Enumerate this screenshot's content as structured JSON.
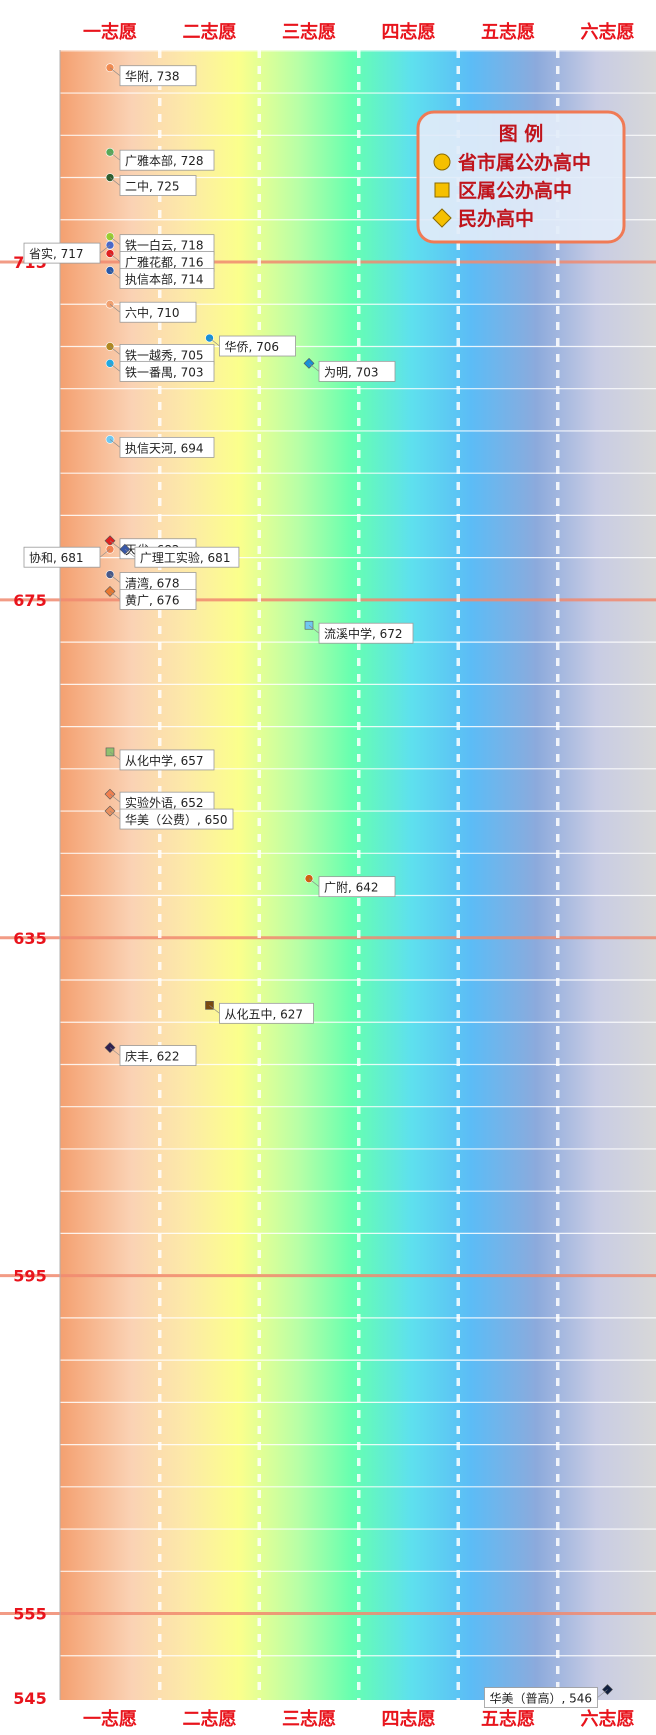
{
  "chart_data": {
    "type": "scatter",
    "categories": [
      "一志愿",
      "二志愿",
      "三志愿",
      "四志愿",
      "五志愿",
      "六志愿"
    ],
    "ylim": [
      545,
      744
    ],
    "y_ticks": [
      545,
      555,
      595,
      635,
      675,
      715
    ],
    "legend": {
      "title": "图 例",
      "placement": "top-right",
      "entries": [
        {
          "label": "省市属公办高中",
          "marker": "circle",
          "color": "#f5c000"
        },
        {
          "label": "区属公办高中",
          "marker": "square",
          "color": "#f5c000"
        },
        {
          "label": "民办高中",
          "marker": "diamond",
          "color": "#f5c000"
        }
      ]
    },
    "points": [
      {
        "name": "华附",
        "label": "华附, 738",
        "cat": 0,
        "y": 738,
        "marker": "circle",
        "color": "#f08a50",
        "side": "right"
      },
      {
        "name": "广雅本部",
        "label": "广雅本部, 728",
        "cat": 0,
        "y": 728,
        "marker": "circle",
        "color": "#58a858",
        "side": "right"
      },
      {
        "name": "二中",
        "label": "二中, 725",
        "cat": 0,
        "y": 725,
        "marker": "circle",
        "color": "#2e5e2e",
        "side": "right"
      },
      {
        "name": "铁一白云",
        "label": "铁一白云, 718",
        "cat": 0,
        "y": 718,
        "marker": "circle",
        "color": "#9acd32",
        "side": "right"
      },
      {
        "name": "省实",
        "label": "省实, 717",
        "cat": 0,
        "y": 717,
        "marker": "circle",
        "color": "#4a68c8",
        "side": "left"
      },
      {
        "name": "广雅花都",
        "label": "广雅花都, 716",
        "cat": 0,
        "y": 716,
        "marker": "circle",
        "color": "#e02020",
        "side": "right"
      },
      {
        "name": "执信本部",
        "label": "执信本部, 714",
        "cat": 0,
        "y": 714,
        "marker": "circle",
        "color": "#2858a8",
        "side": "right"
      },
      {
        "name": "六中",
        "label": "六中, 710",
        "cat": 0,
        "y": 710,
        "marker": "circle",
        "color": "#f0a070",
        "side": "right"
      },
      {
        "name": "华侨",
        "label": "华侨, 706",
        "cat": 1,
        "y": 706,
        "marker": "circle",
        "color": "#1890d8",
        "side": "right"
      },
      {
        "name": "铁一越秀",
        "label": "铁一越秀, 705",
        "cat": 0,
        "y": 705,
        "marker": "circle",
        "color": "#b08820",
        "side": "right"
      },
      {
        "name": "铁一番禺",
        "label": "铁一番禺, 703",
        "cat": 0,
        "y": 703,
        "marker": "circle",
        "color": "#20a8e0",
        "side": "right"
      },
      {
        "name": "为明",
        "label": "为明, 703",
        "cat": 2,
        "y": 703,
        "marker": "diamond",
        "color": "#1890d8",
        "side": "right"
      },
      {
        "name": "执信天河",
        "label": "执信天河, 694",
        "cat": 0,
        "y": 694,
        "marker": "circle",
        "color": "#70c8f0",
        "side": "right"
      },
      {
        "name": "天省",
        "label": "天省, 682",
        "cat": 0,
        "y": 682,
        "marker": "diamond",
        "color": "#e02020",
        "side": "right"
      },
      {
        "name": "协和",
        "label": "协和, 681",
        "cat": 0,
        "y": 681,
        "marker": "circle",
        "color": "#f08050",
        "side": "left"
      },
      {
        "name": "广理工实验",
        "label": "广理工实验, 681",
        "cat": 0.15,
        "y": 681,
        "marker": "diamond",
        "color": "#3858a8",
        "side": "right"
      },
      {
        "name": "清湾",
        "label": "清湾, 678",
        "cat": 0,
        "y": 678,
        "marker": "circle",
        "color": "#485888",
        "side": "right"
      },
      {
        "name": "黄广",
        "label": "黄广, 676",
        "cat": 0,
        "y": 676,
        "marker": "diamond",
        "color": "#e87830",
        "side": "right"
      },
      {
        "name": "流溪中学",
        "label": "流溪中学, 672",
        "cat": 2,
        "y": 672,
        "marker": "square",
        "color": "#70c8f0",
        "side": "right"
      },
      {
        "name": "从化中学",
        "label": "从化中学, 657",
        "cat": 0,
        "y": 657,
        "marker": "square",
        "color": "#90c070",
        "side": "right"
      },
      {
        "name": "实验外语",
        "label": "实验外语, 652",
        "cat": 0,
        "y": 652,
        "marker": "diamond",
        "color": "#f08050",
        "side": "right"
      },
      {
        "name": "华美（公费）",
        "label": "华美（公费）, 650",
        "cat": 0,
        "y": 650,
        "marker": "diamond",
        "color": "#e89060",
        "side": "right"
      },
      {
        "name": "广附",
        "label": "广附, 642",
        "cat": 2,
        "y": 642,
        "marker": "circle",
        "color": "#d06010",
        "side": "right"
      },
      {
        "name": "从化五中",
        "label": "从化五中, 627",
        "cat": 1,
        "y": 627,
        "marker": "square",
        "color": "#7a4a10",
        "side": "right"
      },
      {
        "name": "庆丰",
        "label": "庆丰, 622",
        "cat": 0,
        "y": 622,
        "marker": "diamond",
        "color": "#302050",
        "side": "right"
      },
      {
        "name": "华美（普高）",
        "label": "华美（普高）, 546",
        "cat": 5,
        "y": 546,
        "marker": "diamond",
        "color": "#102040",
        "side": "left"
      }
    ]
  }
}
